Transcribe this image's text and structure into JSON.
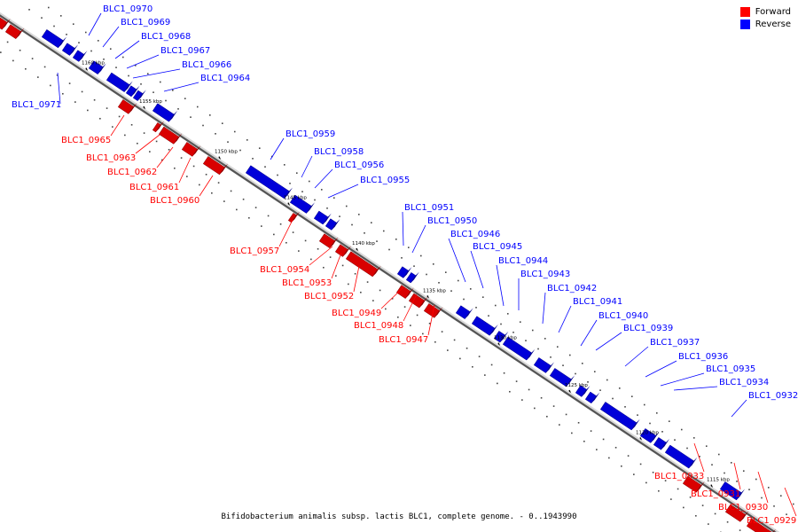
{
  "legend": {
    "forward": {
      "label": "Forward",
      "color": "#ff0000"
    },
    "reverse": {
      "label": "Reverse",
      "color": "#0000ff"
    }
  },
  "caption": "Bifidobacterium animalis subsp. lactis BLC1, complete genome. - 0..1943990",
  "kbp_ticks": [
    "1160 kbp",
    "1155 kbp",
    "1150 kbp",
    "1145 kbp",
    "1140 kbp",
    "1135 kbp",
    "1130 kbp",
    "1125 kbp",
    "1120 kbp",
    "1115 kbp"
  ],
  "reverse_genes": [
    "BLC1_0970",
    "BLC1_0969",
    "BLC1_0968",
    "BLC1_0967",
    "BLC1_0966",
    "BLC1_0964",
    "BLC1_0971",
    "BLC1_0959",
    "BLC1_0958",
    "BLC1_0956",
    "BLC1_0955",
    "BLC1_0951",
    "BLC1_0950",
    "BLC1_0946",
    "BLC1_0945",
    "BLC1_0944",
    "BLC1_0943",
    "BLC1_0942",
    "BLC1_0941",
    "BLC1_0940",
    "BLC1_0939",
    "BLC1_0937",
    "BLC1_0936",
    "BLC1_0935",
    "BLC1_0934",
    "BLC1_0932"
  ],
  "forward_genes": [
    "BLC1_0965",
    "BLC1_0963",
    "BLC1_0962",
    "BLC1_0961",
    "BLC1_0960",
    "BLC1_0957",
    "BLC1_0954",
    "BLC1_0953",
    "BLC1_0952",
    "BLC1_0949",
    "BLC1_0948",
    "BLC1_0947",
    "BLC1_0933",
    "BLC1_0931",
    "BLC1_0930",
    "BLC1_0929"
  ]
}
